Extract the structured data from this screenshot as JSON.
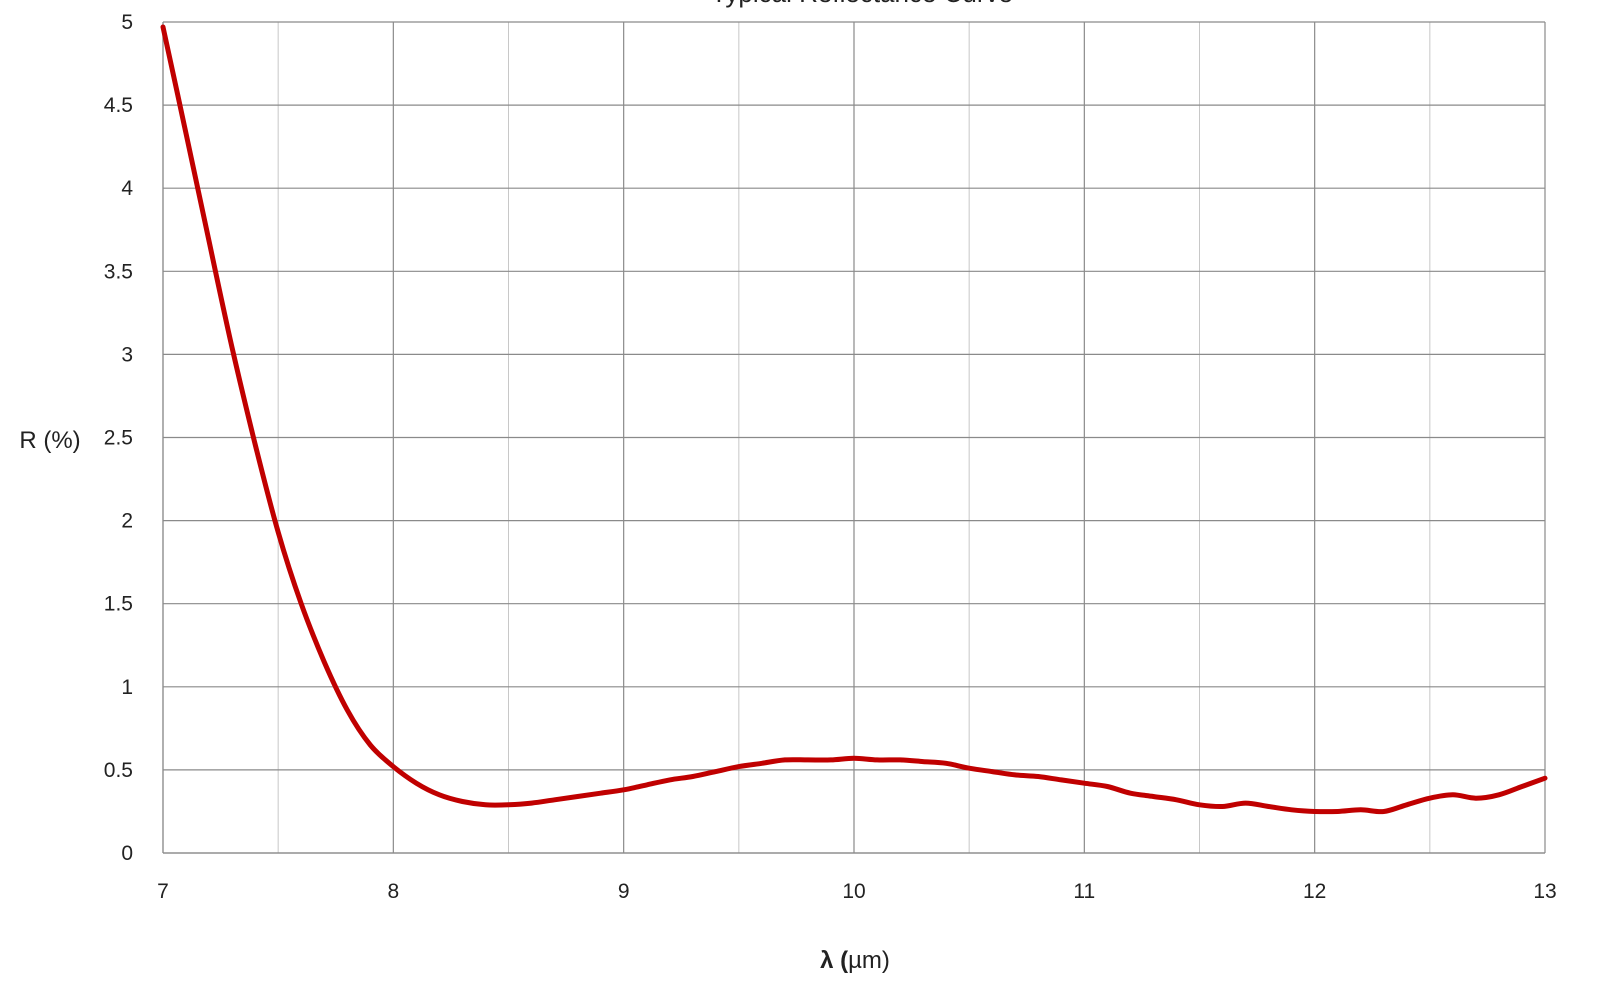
{
  "chart_data": {
    "type": "line",
    "title": "Typical Reflectance Curve",
    "xlabel": "λ (µm)",
    "ylabel": "R (%)",
    "xlim": [
      7,
      13
    ],
    "ylim": [
      0,
      5
    ],
    "x_ticks": [
      "7",
      "8",
      "9",
      "10",
      "11",
      "12",
      "13"
    ],
    "y_ticks": [
      "0",
      "0.5",
      "1",
      "1.5",
      "2",
      "2.5",
      "3",
      "3.5",
      "4",
      "4.5",
      "5"
    ],
    "x_minor_step": 0.5,
    "grid": true,
    "series": [
      {
        "color": "#c00000",
        "x": [
          7.0,
          7.1,
          7.2,
          7.3,
          7.4,
          7.5,
          7.6,
          7.7,
          7.8,
          7.9,
          8.0,
          8.1,
          8.2,
          8.3,
          8.4,
          8.5,
          8.6,
          8.7,
          8.8,
          8.9,
          9.0,
          9.1,
          9.2,
          9.3,
          9.4,
          9.5,
          9.6,
          9.7,
          9.8,
          9.9,
          10.0,
          10.1,
          10.2,
          10.3,
          10.4,
          10.5,
          10.6,
          10.7,
          10.8,
          10.9,
          11.0,
          11.1,
          11.2,
          11.3,
          11.4,
          11.5,
          11.6,
          11.7,
          11.8,
          11.9,
          12.0,
          12.1,
          12.2,
          12.3,
          12.4,
          12.5,
          12.6,
          12.7,
          12.8,
          12.9,
          13.0
        ],
        "y": [
          4.97,
          4.33,
          3.68,
          3.04,
          2.46,
          1.93,
          1.5,
          1.15,
          0.86,
          0.65,
          0.52,
          0.42,
          0.35,
          0.31,
          0.29,
          0.29,
          0.3,
          0.32,
          0.34,
          0.36,
          0.38,
          0.41,
          0.44,
          0.46,
          0.49,
          0.52,
          0.54,
          0.56,
          0.56,
          0.56,
          0.57,
          0.56,
          0.56,
          0.55,
          0.54,
          0.51,
          0.49,
          0.47,
          0.46,
          0.44,
          0.42,
          0.4,
          0.36,
          0.34,
          0.32,
          0.29,
          0.28,
          0.3,
          0.28,
          0.26,
          0.25,
          0.25,
          0.26,
          0.25,
          0.29,
          0.33,
          0.35,
          0.33,
          0.35,
          0.4,
          0.45
        ]
      }
    ]
  }
}
